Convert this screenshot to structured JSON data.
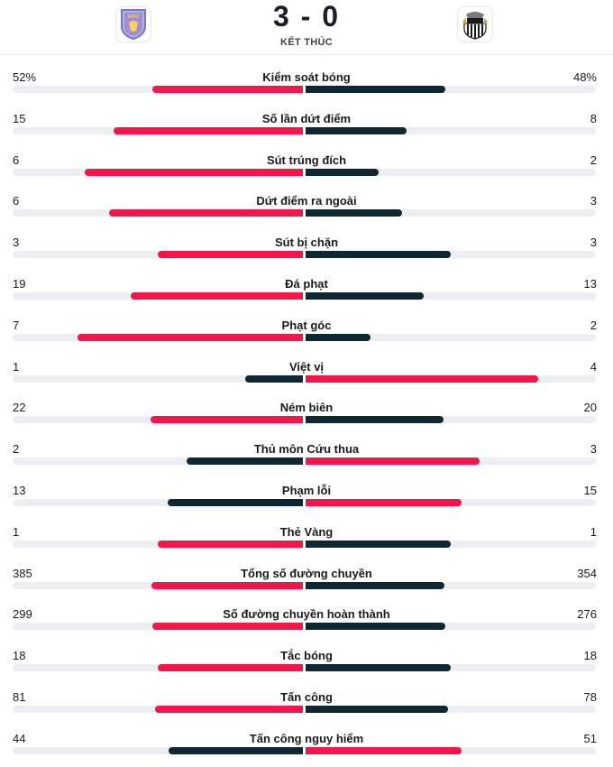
{
  "match": {
    "home_team": "Aston Villa",
    "away_team": "Newcastle United",
    "home_crest_text": "AVFC",
    "score": "3 - 0",
    "status": "KẾT THÚC"
  },
  "colors": {
    "accent": "#f2164a",
    "dark": "#0f2733",
    "track": "#eceef1"
  },
  "stats": [
    {
      "label": "Kiểm soát bóng",
      "home": "52%",
      "away": "48%",
      "home_value": 52,
      "away_value": 48
    },
    {
      "label": "Số lần dứt điểm",
      "home": "15",
      "away": "8",
      "home_value": 15,
      "away_value": 8
    },
    {
      "label": "Sút trúng đích",
      "home": "6",
      "away": "2",
      "home_value": 6,
      "away_value": 2
    },
    {
      "label": "Dứt điểm ra ngoài",
      "home": "6",
      "away": "3",
      "home_value": 6,
      "away_value": 3
    },
    {
      "label": "Sút bị chặn",
      "home": "3",
      "away": "3",
      "home_value": 3,
      "away_value": 3
    },
    {
      "label": "Đá phạt",
      "home": "19",
      "away": "13",
      "home_value": 19,
      "away_value": 13
    },
    {
      "label": "Phạt góc",
      "home": "7",
      "away": "2",
      "home_value": 7,
      "away_value": 2
    },
    {
      "label": "Việt vị",
      "home": "1",
      "away": "4",
      "home_value": 1,
      "away_value": 4
    },
    {
      "label": "Ném biên",
      "home": "22",
      "away": "20",
      "home_value": 22,
      "away_value": 20
    },
    {
      "label": "Thủ môn Cứu thua",
      "home": "2",
      "away": "3",
      "home_value": 2,
      "away_value": 3
    },
    {
      "label": "Phạm lỗi",
      "home": "13",
      "away": "15",
      "home_value": 13,
      "away_value": 15
    },
    {
      "label": "Thẻ Vàng",
      "home": "1",
      "away": "1",
      "home_value": 1,
      "away_value": 1
    },
    {
      "label": "Tổng số đường chuyền",
      "home": "385",
      "away": "354",
      "home_value": 385,
      "away_value": 354
    },
    {
      "label": "Số đường chuyền hoàn thành",
      "home": "299",
      "away": "276",
      "home_value": 299,
      "away_value": 276
    },
    {
      "label": "Tắc bóng",
      "home": "18",
      "away": "18",
      "home_value": 18,
      "away_value": 18
    },
    {
      "label": "Tấn công",
      "home": "81",
      "away": "78",
      "home_value": 81,
      "away_value": 78
    },
    {
      "label": "Tấn công nguy hiểm",
      "home": "44",
      "away": "51",
      "home_value": 44,
      "away_value": 51
    }
  ]
}
